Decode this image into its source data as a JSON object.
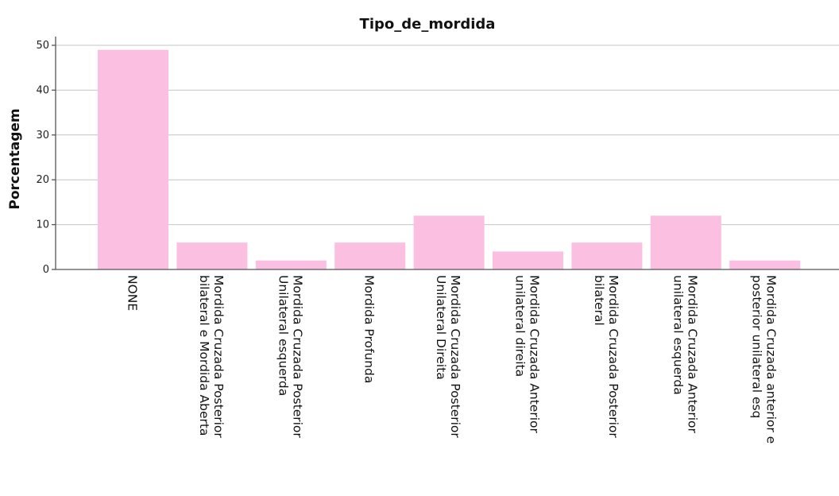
{
  "colors": {
    "bar": "#fbbfe1",
    "grid": "#c4c4c4",
    "axis": "#555555"
  },
  "chart_data": {
    "type": "bar",
    "title": "Tipo_de_mordida",
    "xlabel": "",
    "ylabel": "Porcentagem",
    "ylim": [
      0,
      50
    ],
    "yticks": [
      0,
      10,
      20,
      30,
      40,
      50
    ],
    "grid": true,
    "categories": [
      [
        "NONE"
      ],
      [
        "Mordida Cruzada Posterior",
        "bilateral e Mordida Aberta"
      ],
      [
        "Mordida Cruzada Posterior",
        "Unilateral esquerda"
      ],
      [
        "Mordida Profunda"
      ],
      [
        "Mordida Cruzada Posterior",
        "Unilateral Direita"
      ],
      [
        "Mordida Cruzada Anterior",
        "unilateral direita"
      ],
      [
        "Mordida Cruzada Posterior",
        "bilateral"
      ],
      [
        "Mordida Cruzada Anterior",
        "unilateral esquerda"
      ],
      [
        "Mordida Cruzada anterior e",
        "posterior unilateral esq"
      ]
    ],
    "values": [
      49,
      6,
      2,
      6,
      12,
      4,
      6,
      12,
      2
    ]
  }
}
